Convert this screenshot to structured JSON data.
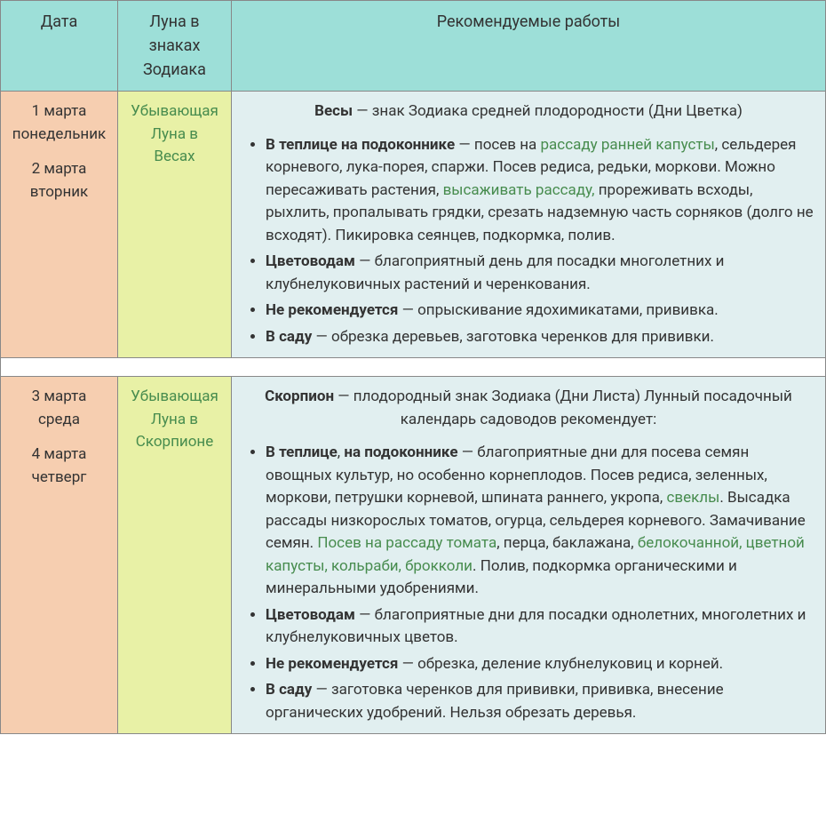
{
  "colors": {
    "header_bg": "#9ddfd8",
    "date_bg": "#f6ceb0",
    "sign_bg": "#e8f1a6",
    "rec_bg": "#e1eff0",
    "sign_text": "#478c4e",
    "link_text": "#478c4e",
    "border": "#888888"
  },
  "header": {
    "date": "Дата",
    "sign": "Луна в знаках Зодиака",
    "rec": "Рекомендуемые работы"
  },
  "rows": [
    {
      "dates": [
        {
          "line1": "1 марта",
          "line2": "понедельник"
        },
        {
          "line1": "2 марта",
          "line2": "вторник"
        }
      ],
      "sign": "Убывающая Луна в Весах",
      "intro": {
        "bold": "Весы",
        "rest": " — знак Зодиака средней плодородности (Дни Цветка)"
      },
      "items": [
        {
          "parts": [
            {
              "t": "bold",
              "v": "В теплице на подоконнике"
            },
            {
              "t": "text",
              "v": " — посев на "
            },
            {
              "t": "link",
              "v": "рассаду ранней капусты"
            },
            {
              "t": "text",
              "v": ", сельдерея корневого, лука-порея, спаржи. Посев редиса, редьки, моркови.   Можно пересаживать растения, "
            },
            {
              "t": "link",
              "v": "высаживать рассаду,"
            },
            {
              "t": "text",
              "v": " прореживать всходы, рыхлить, пропалывать грядки, срезать надземную часть сорняков (долго не всходят). Пикировка сеянцев, подкормка, полив."
            }
          ]
        },
        {
          "parts": [
            {
              "t": "bold",
              "v": "Цветоводам"
            },
            {
              "t": "text",
              "v": " — благоприятный день для посадки многолетних и клубнелуковичных растений и черенкования."
            }
          ]
        },
        {
          "parts": [
            {
              "t": "bold",
              "v": "Не рекомендуется"
            },
            {
              "t": "text",
              "v": " — опрыскивание ядохимикатами, прививка."
            }
          ]
        },
        {
          "parts": [
            {
              "t": "bold",
              "v": "В саду"
            },
            {
              "t": "text",
              "v": " — обрезка деревьев, заготовка черенков для прививки."
            }
          ]
        }
      ]
    },
    {
      "dates": [
        {
          "line1": "3 марта",
          "line2": "среда"
        },
        {
          "line1": "4 марта",
          "line2": "четверг"
        }
      ],
      "sign": "Убывающая Луна в Скорпионе",
      "intro": {
        "bold": "Скорпион",
        "rest": " — плодородный знак Зодиака (Дни Листа) Лунный посадочный календарь садоводов рекомендует:"
      },
      "items": [
        {
          "parts": [
            {
              "t": "bold",
              "v": "В теплице"
            },
            {
              "t": "text",
              "v": ", "
            },
            {
              "t": "bold",
              "v": "на подоконнике"
            },
            {
              "t": "text",
              "v": " — благоприятные дни для посева семян овощных культур, но особенно корнеплодов. Посев редиса, зеленных, моркови, петрушки корневой, шпината раннего, укропа, "
            },
            {
              "t": "link",
              "v": "свеклы"
            },
            {
              "t": "text",
              "v": ". Высадка рассады низкорослых томатов, огурца, сельдерея корневого. Замачивание семян. "
            },
            {
              "t": "link",
              "v": "Посев на рассаду томата"
            },
            {
              "t": "text",
              "v": ", перца, баклажана, "
            },
            {
              "t": "link",
              "v": "белокочанной, цветной капусты, кольраби, брокколи"
            },
            {
              "t": "text",
              "v": ". Полив, подкормка органическими и минеральными удобрениями."
            }
          ]
        },
        {
          "parts": [
            {
              "t": "bold",
              "v": "Цветоводам"
            },
            {
              "t": "text",
              "v": " — благоприятные дни для посадки однолетних, многолетних и клубнелуковичных цветов."
            }
          ]
        },
        {
          "parts": [
            {
              "t": "bold",
              "v": "Не рекомендуется"
            },
            {
              "t": "text",
              "v": " — обрезка, деление клубнелуковиц и корней."
            }
          ]
        },
        {
          "parts": [
            {
              "t": "bold",
              "v": "В саду"
            },
            {
              "t": "text",
              "v": " — заготовка черенков для прививки, прививка, внесение органических удобрений. Нельзя обрезать деревья."
            }
          ]
        }
      ]
    }
  ]
}
